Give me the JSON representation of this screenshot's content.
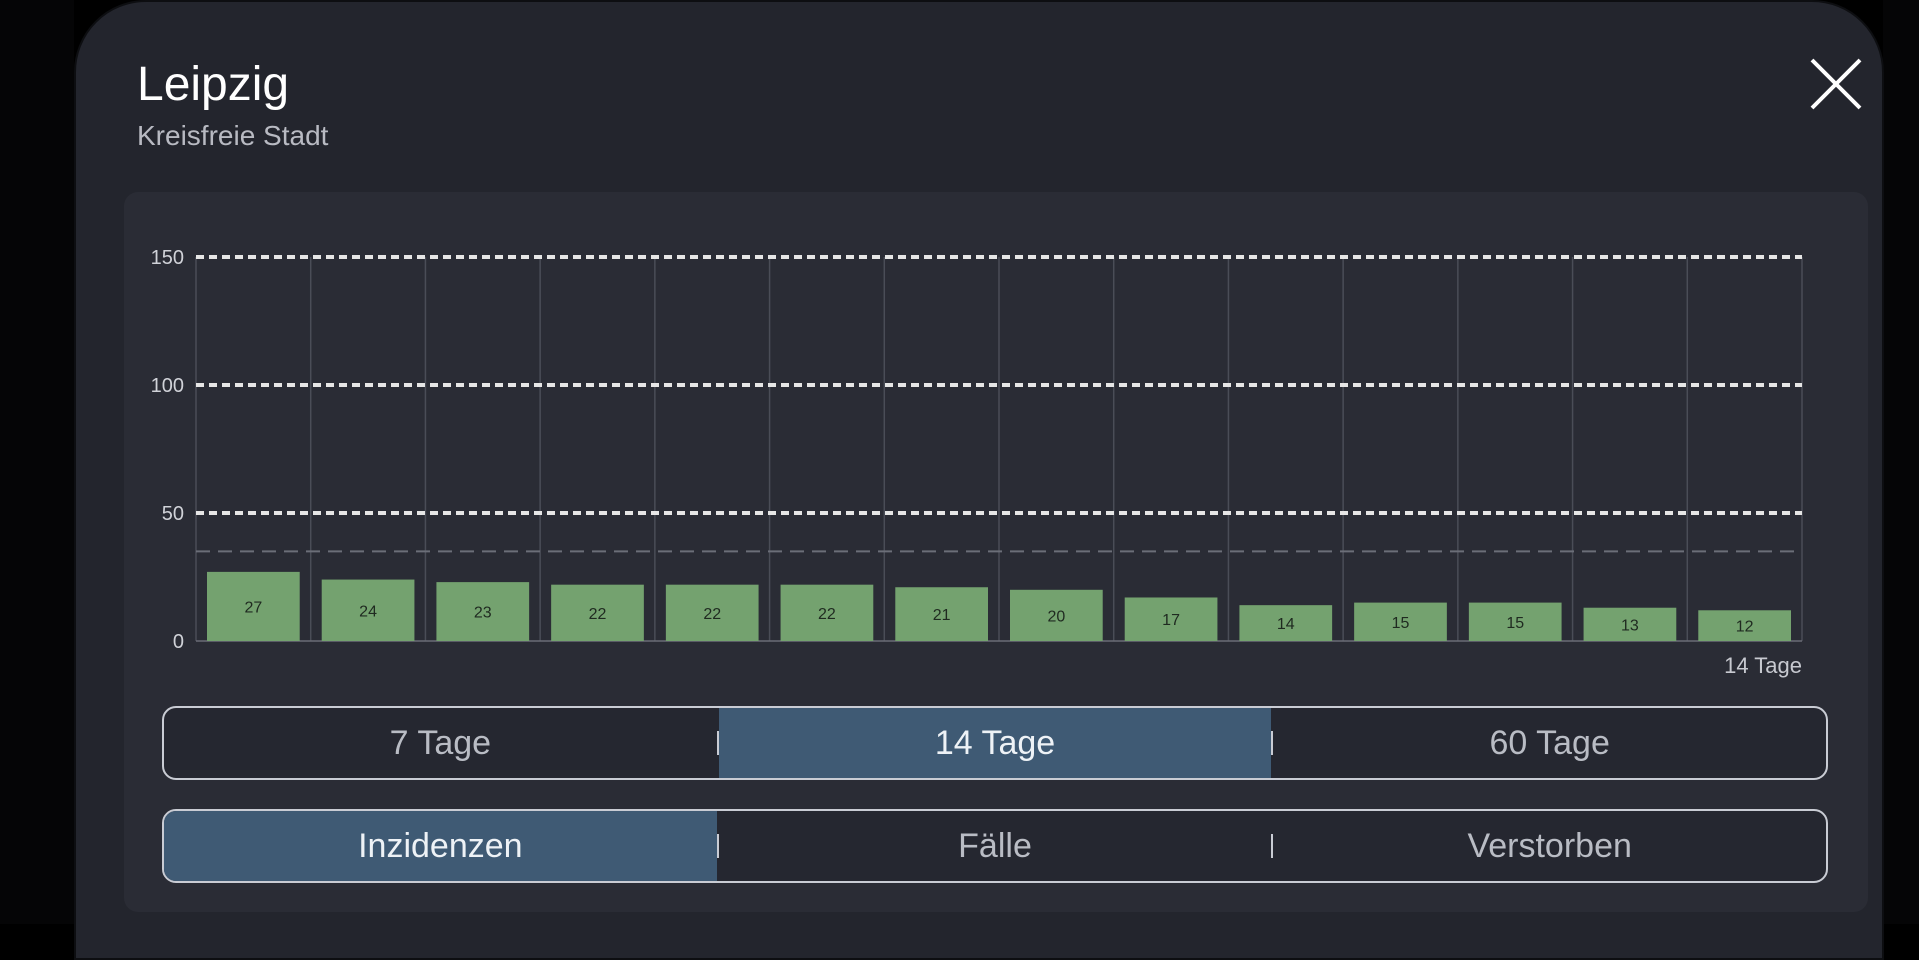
{
  "header": {
    "title": "Leipzig",
    "subtitle": "Kreisfreie Stadt"
  },
  "period_selector": {
    "options": [
      "7 Tage",
      "14 Tage",
      "60 Tage"
    ],
    "selected": "14 Tage"
  },
  "metric_selector": {
    "options": [
      "Inzidenzen",
      "Fälle",
      "Verstorben"
    ],
    "selected": "Inzidenzen"
  },
  "colors": {
    "bar": "#74a26f",
    "active_segment": "#3f5a74"
  },
  "chart_data": {
    "type": "bar",
    "values": [
      27,
      24,
      23,
      22,
      22,
      22,
      21,
      20,
      17,
      14,
      15,
      15,
      13,
      12
    ],
    "ylim": [
      0,
      150
    ],
    "yticks": [
      0,
      50,
      100,
      150
    ],
    "threshold_lines": [
      50,
      100,
      150
    ],
    "reference_line": 35,
    "xlabel": "14 Tage",
    "grid": true
  }
}
